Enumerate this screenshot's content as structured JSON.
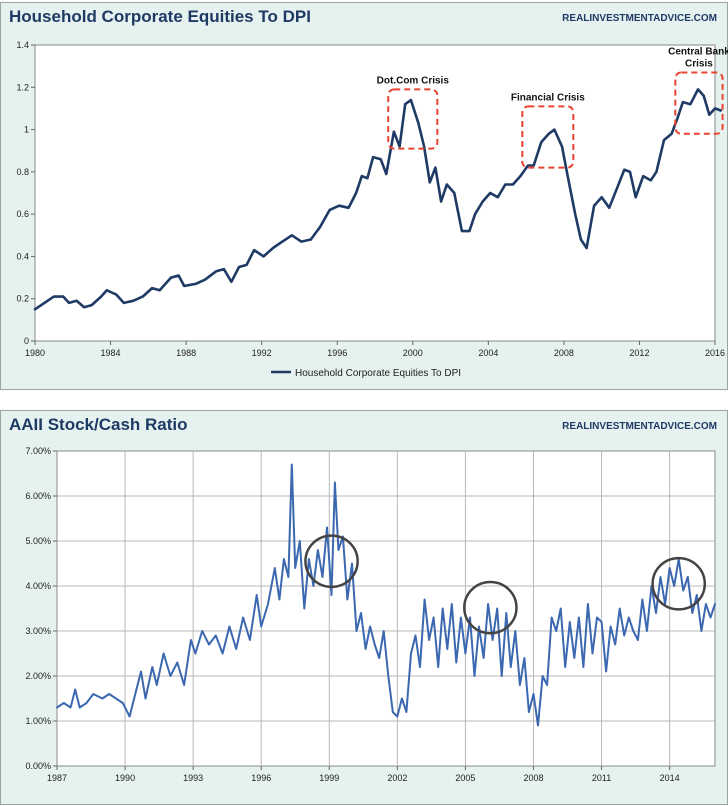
{
  "charts": {
    "top": {
      "title": "Household Corporate Equities To DPI",
      "source": "REALINVESTMENTADVICE.COM"
    },
    "bottom": {
      "title": "AAII Stock/Cash Ratio",
      "source": "REALINVESTMENTADVICE.COM"
    }
  },
  "colors": {
    "panel_bg": "#e6f2f0",
    "plot_bg": "#ffffff",
    "top_line": "#1f3a64",
    "bottom_line": "#3b68b0",
    "annotation_box": "#e8432f",
    "circle": "#444444",
    "title": "#1f3a64"
  },
  "chart_data": [
    {
      "type": "line",
      "title": "Household Corporate Equities To DPI",
      "legend": "bottom",
      "grid": false,
      "xlim": [
        1980,
        2016
      ],
      "ylim": [
        0,
        1.4
      ],
      "x_ticks": [
        "1980",
        "1984",
        "1988",
        "1992",
        "1996",
        "2000",
        "2004",
        "2008",
        "2012",
        "2016"
      ],
      "y_ticks": [
        "0",
        "0.2",
        "0.4",
        "0.6",
        "0.8",
        "1",
        "1.2",
        "1.4"
      ],
      "series": [
        {
          "name": "Household Corporate Equities To DPI",
          "points": [
            [
              1980.0,
              0.15
            ],
            [
              1980.5,
              0.18
            ],
            [
              1981.0,
              0.21
            ],
            [
              1981.5,
              0.21
            ],
            [
              1981.8,
              0.18
            ],
            [
              1982.2,
              0.19
            ],
            [
              1982.6,
              0.16
            ],
            [
              1983.0,
              0.17
            ],
            [
              1983.5,
              0.21
            ],
            [
              1983.8,
              0.24
            ],
            [
              1984.3,
              0.22
            ],
            [
              1984.7,
              0.18
            ],
            [
              1985.2,
              0.19
            ],
            [
              1985.7,
              0.21
            ],
            [
              1986.2,
              0.25
            ],
            [
              1986.6,
              0.24
            ],
            [
              1987.2,
              0.3
            ],
            [
              1987.6,
              0.31
            ],
            [
              1987.9,
              0.26
            ],
            [
              1988.5,
              0.27
            ],
            [
              1989.0,
              0.29
            ],
            [
              1989.6,
              0.33
            ],
            [
              1990.0,
              0.34
            ],
            [
              1990.4,
              0.28
            ],
            [
              1990.8,
              0.35
            ],
            [
              1991.2,
              0.36
            ],
            [
              1991.6,
              0.43
            ],
            [
              1992.1,
              0.4
            ],
            [
              1992.6,
              0.44
            ],
            [
              1993.1,
              0.47
            ],
            [
              1993.6,
              0.5
            ],
            [
              1994.1,
              0.47
            ],
            [
              1994.6,
              0.48
            ],
            [
              1995.1,
              0.54
            ],
            [
              1995.6,
              0.62
            ],
            [
              1996.1,
              0.64
            ],
            [
              1996.6,
              0.63
            ],
            [
              1997.0,
              0.7
            ],
            [
              1997.3,
              0.78
            ],
            [
              1997.6,
              0.77
            ],
            [
              1997.9,
              0.87
            ],
            [
              1998.3,
              0.86
            ],
            [
              1998.6,
              0.79
            ],
            [
              1999.0,
              0.99
            ],
            [
              1999.3,
              0.92
            ],
            [
              1999.6,
              1.12
            ],
            [
              1999.9,
              1.14
            ],
            [
              2000.3,
              1.03
            ],
            [
              2000.6,
              0.92
            ],
            [
              2000.9,
              0.75
            ],
            [
              2001.2,
              0.82
            ],
            [
              2001.5,
              0.66
            ],
            [
              2001.8,
              0.74
            ],
            [
              2002.2,
              0.7
            ],
            [
              2002.6,
              0.52
            ],
            [
              2003.0,
              0.52
            ],
            [
              2003.3,
              0.6
            ],
            [
              2003.7,
              0.66
            ],
            [
              2004.1,
              0.7
            ],
            [
              2004.5,
              0.68
            ],
            [
              2004.9,
              0.74
            ],
            [
              2005.3,
              0.74
            ],
            [
              2005.7,
              0.78
            ],
            [
              2006.1,
              0.83
            ],
            [
              2006.4,
              0.83
            ],
            [
              2006.8,
              0.94
            ],
            [
              2007.2,
              0.98
            ],
            [
              2007.5,
              1.0
            ],
            [
              2007.9,
              0.92
            ],
            [
              2008.2,
              0.78
            ],
            [
              2008.6,
              0.6
            ],
            [
              2008.9,
              0.48
            ],
            [
              2009.2,
              0.44
            ],
            [
              2009.6,
              0.64
            ],
            [
              2010.0,
              0.68
            ],
            [
              2010.4,
              0.63
            ],
            [
              2010.8,
              0.72
            ],
            [
              2011.2,
              0.81
            ],
            [
              2011.5,
              0.8
            ],
            [
              2011.8,
              0.68
            ],
            [
              2012.2,
              0.78
            ],
            [
              2012.6,
              0.76
            ],
            [
              2012.9,
              0.8
            ],
            [
              2013.3,
              0.95
            ],
            [
              2013.7,
              0.98
            ],
            [
              2014.0,
              1.05
            ],
            [
              2014.3,
              1.13
            ],
            [
              2014.7,
              1.12
            ],
            [
              2015.1,
              1.19
            ],
            [
              2015.4,
              1.16
            ],
            [
              2015.7,
              1.07
            ],
            [
              2016.0,
              1.1
            ],
            [
              2016.3,
              1.09
            ]
          ]
        }
      ],
      "annotations": [
        {
          "label": "Dot.Com Crisis",
          "x_range": [
            1998.7,
            2001.3
          ],
          "y_range": [
            0.91,
            1.19
          ]
        },
        {
          "label": "Financial Crisis",
          "x_range": [
            2005.8,
            2008.5
          ],
          "y_range": [
            0.82,
            1.11
          ]
        },
        {
          "label_lines": [
            "Central Bank",
            "Crisis"
          ],
          "x_range": [
            2013.9,
            2016.4
          ],
          "y_range": [
            0.98,
            1.27
          ]
        }
      ]
    },
    {
      "type": "line",
      "title": "AAII Stock/Cash Ratio",
      "legend": "none",
      "grid": true,
      "xlim": [
        1987,
        2016
      ],
      "ylim": [
        0,
        0.07
      ],
      "x_ticks": [
        "1987",
        "1990",
        "1993",
        "1996",
        "1999",
        "2002",
        "2005",
        "2008",
        "2011",
        "2014"
      ],
      "y_ticks": [
        "0.00%",
        "1.00%",
        "2.00%",
        "3.00%",
        "4.00%",
        "5.00%",
        "6.00%",
        "7.00%"
      ],
      "series": [
        {
          "name": "AAII Stock/Cash Ratio",
          "points": [
            [
              1987.0,
              0.013
            ],
            [
              1987.3,
              0.014
            ],
            [
              1987.6,
              0.013
            ],
            [
              1987.8,
              0.017
            ],
            [
              1988.0,
              0.013
            ],
            [
              1988.3,
              0.014
            ],
            [
              1988.6,
              0.016
            ],
            [
              1989.0,
              0.015
            ],
            [
              1989.3,
              0.016
            ],
            [
              1989.6,
              0.015
            ],
            [
              1989.9,
              0.014
            ],
            [
              1990.2,
              0.011
            ],
            [
              1990.5,
              0.017
            ],
            [
              1990.7,
              0.021
            ],
            [
              1990.9,
              0.015
            ],
            [
              1991.2,
              0.022
            ],
            [
              1991.4,
              0.018
            ],
            [
              1991.7,
              0.025
            ],
            [
              1992.0,
              0.02
            ],
            [
              1992.3,
              0.023
            ],
            [
              1992.6,
              0.018
            ],
            [
              1992.9,
              0.028
            ],
            [
              1993.1,
              0.025
            ],
            [
              1993.4,
              0.03
            ],
            [
              1993.7,
              0.027
            ],
            [
              1994.0,
              0.029
            ],
            [
              1994.3,
              0.025
            ],
            [
              1994.6,
              0.031
            ],
            [
              1994.9,
              0.026
            ],
            [
              1995.2,
              0.033
            ],
            [
              1995.5,
              0.028
            ],
            [
              1995.8,
              0.038
            ],
            [
              1996.0,
              0.031
            ],
            [
              1996.3,
              0.036
            ],
            [
              1996.6,
              0.044
            ],
            [
              1996.8,
              0.037
            ],
            [
              1997.0,
              0.046
            ],
            [
              1997.2,
              0.042
            ],
            [
              1997.35,
              0.067
            ],
            [
              1997.5,
              0.044
            ],
            [
              1997.7,
              0.05
            ],
            [
              1997.9,
              0.035
            ],
            [
              1998.1,
              0.046
            ],
            [
              1998.3,
              0.04
            ],
            [
              1998.5,
              0.048
            ],
            [
              1998.7,
              0.042
            ],
            [
              1998.9,
              0.053
            ],
            [
              1999.1,
              0.038
            ],
            [
              1999.25,
              0.063
            ],
            [
              1999.4,
              0.048
            ],
            [
              1999.6,
              0.051
            ],
            [
              1999.8,
              0.037
            ],
            [
              2000.0,
              0.045
            ],
            [
              2000.2,
              0.03
            ],
            [
              2000.4,
              0.034
            ],
            [
              2000.6,
              0.026
            ],
            [
              2000.8,
              0.031
            ],
            [
              2001.0,
              0.027
            ],
            [
              2001.2,
              0.024
            ],
            [
              2001.4,
              0.03
            ],
            [
              2001.6,
              0.02
            ],
            [
              2001.8,
              0.012
            ],
            [
              2002.0,
              0.011
            ],
            [
              2002.2,
              0.015
            ],
            [
              2002.4,
              0.012
            ],
            [
              2002.6,
              0.025
            ],
            [
              2002.8,
              0.029
            ],
            [
              2003.0,
              0.022
            ],
            [
              2003.2,
              0.037
            ],
            [
              2003.4,
              0.028
            ],
            [
              2003.6,
              0.033
            ],
            [
              2003.8,
              0.022
            ],
            [
              2004.0,
              0.035
            ],
            [
              2004.2,
              0.026
            ],
            [
              2004.4,
              0.036
            ],
            [
              2004.6,
              0.023
            ],
            [
              2004.8,
              0.033
            ],
            [
              2005.0,
              0.025
            ],
            [
              2005.2,
              0.033
            ],
            [
              2005.4,
              0.02
            ],
            [
              2005.6,
              0.031
            ],
            [
              2005.8,
              0.024
            ],
            [
              2006.0,
              0.036
            ],
            [
              2006.2,
              0.028
            ],
            [
              2006.4,
              0.035
            ],
            [
              2006.6,
              0.02
            ],
            [
              2006.8,
              0.034
            ],
            [
              2007.0,
              0.022
            ],
            [
              2007.2,
              0.03
            ],
            [
              2007.4,
              0.018
            ],
            [
              2007.6,
              0.024
            ],
            [
              2007.8,
              0.012
            ],
            [
              2008.0,
              0.016
            ],
            [
              2008.2,
              0.009
            ],
            [
              2008.4,
              0.02
            ],
            [
              2008.6,
              0.018
            ],
            [
              2008.8,
              0.033
            ],
            [
              2009.0,
              0.03
            ],
            [
              2009.2,
              0.035
            ],
            [
              2009.4,
              0.022
            ],
            [
              2009.6,
              0.032
            ],
            [
              2009.8,
              0.024
            ],
            [
              2010.0,
              0.033
            ],
            [
              2010.2,
              0.022
            ],
            [
              2010.4,
              0.036
            ],
            [
              2010.6,
              0.025
            ],
            [
              2010.8,
              0.033
            ],
            [
              2011.0,
              0.032
            ],
            [
              2011.2,
              0.021
            ],
            [
              2011.4,
              0.031
            ],
            [
              2011.6,
              0.027
            ],
            [
              2011.8,
              0.035
            ],
            [
              2012.0,
              0.029
            ],
            [
              2012.2,
              0.033
            ],
            [
              2012.4,
              0.03
            ],
            [
              2012.6,
              0.028
            ],
            [
              2012.8,
              0.037
            ],
            [
              2013.0,
              0.03
            ],
            [
              2013.2,
              0.04
            ],
            [
              2013.4,
              0.034
            ],
            [
              2013.6,
              0.042
            ],
            [
              2013.8,
              0.036
            ],
            [
              2014.0,
              0.044
            ],
            [
              2014.2,
              0.04
            ],
            [
              2014.4,
              0.046
            ],
            [
              2014.6,
              0.039
            ],
            [
              2014.8,
              0.042
            ],
            [
              2015.0,
              0.034
            ],
            [
              2015.2,
              0.038
            ],
            [
              2015.4,
              0.03
            ],
            [
              2015.6,
              0.036
            ],
            [
              2015.8,
              0.033
            ],
            [
              2016.0,
              0.036
            ]
          ]
        }
      ],
      "circles": [
        {
          "cx": 1999.1,
          "cy": 0.0455,
          "rx": 1.15,
          "ry": 0.0057
        },
        {
          "cx": 2006.1,
          "cy": 0.0352,
          "rx": 1.15,
          "ry": 0.0057
        },
        {
          "cx": 2014.4,
          "cy": 0.0405,
          "rx": 1.15,
          "ry": 0.0057
        }
      ]
    }
  ]
}
